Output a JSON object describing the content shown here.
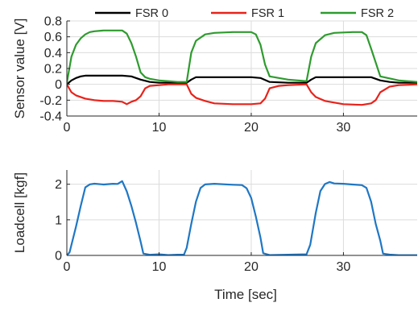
{
  "chart_data": [
    {
      "type": "line",
      "xlabel": "",
      "ylabel": "Sensor value [V]",
      "xlim": [
        0,
        38
      ],
      "ylim": [
        -0.4,
        0.8
      ],
      "xticks": [
        "0",
        "10",
        "20",
        "30"
      ],
      "yticks": [
        "0.8",
        "0.6",
        "0.4",
        "0.2",
        "0",
        "-0.2",
        "-0.4"
      ],
      "grid": true,
      "legend_position": "top",
      "series": [
        {
          "name": "FSR 0",
          "color": "#000000",
          "x": [
            0,
            0.5,
            1,
            1.5,
            2,
            3,
            4,
            5,
            6,
            7,
            8,
            9,
            10,
            11,
            12,
            13,
            13.5,
            14,
            15,
            16,
            18,
            20,
            21,
            22,
            24,
            26,
            26.5,
            27,
            28,
            29,
            31,
            33,
            34,
            35,
            36,
            38
          ],
          "values": [
            0.0,
            0.05,
            0.08,
            0.1,
            0.11,
            0.11,
            0.11,
            0.11,
            0.11,
            0.1,
            0.06,
            0.03,
            0.02,
            0.02,
            0.02,
            0.02,
            0.06,
            0.09,
            0.09,
            0.09,
            0.09,
            0.09,
            0.08,
            0.03,
            0.02,
            0.02,
            0.06,
            0.09,
            0.09,
            0.09,
            0.09,
            0.09,
            0.05,
            0.03,
            0.02,
            0.02
          ]
        },
        {
          "name": "FSR 1",
          "color": "#e8221a",
          "x": [
            0,
            0.5,
            1,
            2,
            3,
            4,
            5,
            6,
            6.5,
            7,
            7.5,
            8,
            8.5,
            9,
            10,
            11,
            12,
            13,
            13.5,
            14,
            15,
            16,
            18,
            20,
            21,
            21.5,
            22,
            23,
            24,
            26,
            26.5,
            27,
            28,
            30,
            32,
            33,
            33.5,
            34,
            35,
            36,
            38
          ],
          "values": [
            0.0,
            -0.1,
            -0.14,
            -0.18,
            -0.2,
            -0.21,
            -0.21,
            -0.22,
            -0.25,
            -0.22,
            -0.2,
            -0.15,
            -0.05,
            -0.02,
            -0.01,
            0.0,
            0.0,
            0.0,
            -0.12,
            -0.17,
            -0.21,
            -0.24,
            -0.25,
            -0.25,
            -0.24,
            -0.18,
            -0.05,
            -0.02,
            -0.01,
            0.0,
            -0.1,
            -0.16,
            -0.21,
            -0.25,
            -0.26,
            -0.24,
            -0.2,
            -0.1,
            -0.03,
            -0.01,
            0.0
          ]
        },
        {
          "name": "FSR 2",
          "color": "#2e9b2e",
          "x": [
            0,
            0.5,
            1,
            1.5,
            2,
            2.5,
            3,
            4,
            5,
            6,
            6.5,
            7,
            7.5,
            8,
            8.5,
            9,
            10,
            11,
            12,
            13,
            13.5,
            14,
            15,
            16,
            18,
            20,
            20.5,
            21,
            21.5,
            22,
            24,
            26,
            26.5,
            27,
            28,
            29,
            31,
            32,
            32.5,
            33,
            34,
            36,
            38
          ],
          "values": [
            0.02,
            0.35,
            0.5,
            0.58,
            0.63,
            0.66,
            0.67,
            0.68,
            0.68,
            0.68,
            0.64,
            0.52,
            0.35,
            0.15,
            0.09,
            0.07,
            0.05,
            0.04,
            0.03,
            0.03,
            0.4,
            0.55,
            0.63,
            0.65,
            0.66,
            0.66,
            0.63,
            0.5,
            0.25,
            0.1,
            0.06,
            0.04,
            0.35,
            0.52,
            0.62,
            0.65,
            0.66,
            0.66,
            0.62,
            0.45,
            0.1,
            0.05,
            0.03
          ]
        }
      ]
    },
    {
      "type": "line",
      "xlabel": "Time [sec]",
      "ylabel": "Loadcell [kgf]",
      "xlim": [
        0,
        38
      ],
      "ylim": [
        0,
        2.4
      ],
      "xticks": [
        "0",
        "10",
        "20",
        "30"
      ],
      "yticks": [
        "2",
        "1",
        "0"
      ],
      "grid": true,
      "series": [
        {
          "color": "#1f77c4",
          "x": [
            0,
            0.3,
            1,
            1.5,
            2,
            2.5,
            3,
            4,
            5,
            5.5,
            6,
            6.5,
            7,
            7.5,
            8,
            8.3,
            9,
            10,
            11,
            12,
            12.7,
            13,
            13.5,
            14,
            14.5,
            15,
            16,
            18,
            19,
            19.5,
            20,
            20.5,
            21,
            21.3,
            22,
            24,
            26,
            26.4,
            27,
            27.5,
            28,
            28.5,
            29,
            30,
            31,
            32,
            32.5,
            33,
            33.5,
            34,
            34.3,
            35,
            36,
            38
          ],
          "values": [
            0,
            0.1,
            0.8,
            1.4,
            1.9,
            2.0,
            2.02,
            2.0,
            2.0,
            2.02,
            2.08,
            1.8,
            1.4,
            0.9,
            0.4,
            0.05,
            0.02,
            0.02,
            0.02,
            0.02,
            0.02,
            0.2,
            0.9,
            1.5,
            1.9,
            2.0,
            2.02,
            2.0,
            1.97,
            1.9,
            1.6,
            1.1,
            0.5,
            0.05,
            0.02,
            0.02,
            0.02,
            0.3,
            1.2,
            1.8,
            2.02,
            2.05,
            2.03,
            2.0,
            2.0,
            1.98,
            1.9,
            1.5,
            0.9,
            0.4,
            0.05,
            0.02,
            0.02,
            0.02
          ]
        }
      ]
    }
  ]
}
